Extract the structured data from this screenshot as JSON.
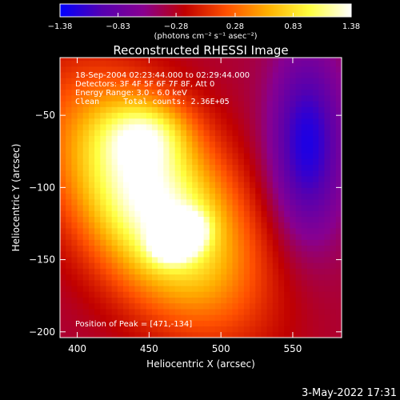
{
  "chart_data": {
    "type": "heatmap",
    "title": "Reconstructed RHESSI Image",
    "xlabel": "Heliocentric X (arcsec)",
    "ylabel": "Heliocentric Y (arcsec)",
    "xlim": [
      388,
      584
    ],
    "ylim": [
      -204,
      -10
    ],
    "x_ticks": [
      400,
      450,
      500,
      550
    ],
    "x_tick_labels": [
      "400",
      "450",
      "500",
      "550"
    ],
    "y_ticks": [
      -50,
      -100,
      -150,
      -200
    ],
    "y_tick_labels": [
      "−50",
      "−100",
      "−150",
      "−200"
    ],
    "colorbar": {
      "min": -1.38,
      "max": 1.38,
      "ticks": [
        -1.38,
        -0.83,
        -0.28,
        0.28,
        0.83,
        1.38
      ],
      "tick_labels": [
        "−1.38",
        "−0.83",
        "−0.28",
        "0.28",
        "0.83",
        "1.38"
      ],
      "unit_label": "(photons cm⁻² s⁻¹ asec⁻²)",
      "colors": [
        "#0000ff",
        "#5500b0",
        "#880090",
        "#c00000",
        "#ff5000",
        "#ffb000",
        "#ffff40",
        "#ffffff"
      ]
    },
    "annotations": [
      "18-Sep-2004 02:23:44.000 to 02:29:44.000",
      "Detectors: 3F 4F 5F 6F 7F 8F, Att 0",
      "Energy Range: 3.0 - 6.0 keV",
      "Clean     Total counts: 2.36E+05"
    ],
    "peak_label": "Position of Peak = [471,-134]",
    "peak": [
      471,
      -134
    ],
    "sources": [
      {
        "x": 452,
        "y": -110,
        "sx": 35,
        "sy": 62,
        "angle_deg": 35,
        "value": 0.95
      },
      {
        "x": 471,
        "y": -134,
        "sx": 12,
        "sy": 9,
        "angle_deg": 30,
        "value": 0.85
      },
      {
        "x": 448,
        "y": -62,
        "sx": 20,
        "sy": 16,
        "angle_deg": 0,
        "value": 0.35
      },
      {
        "x": 560,
        "y": -70,
        "sx": 18,
        "sy": 45,
        "angle_deg": 0,
        "value": -0.9
      }
    ],
    "background_level": -0.35
  },
  "timestamp": "3-May-2022 17:31"
}
